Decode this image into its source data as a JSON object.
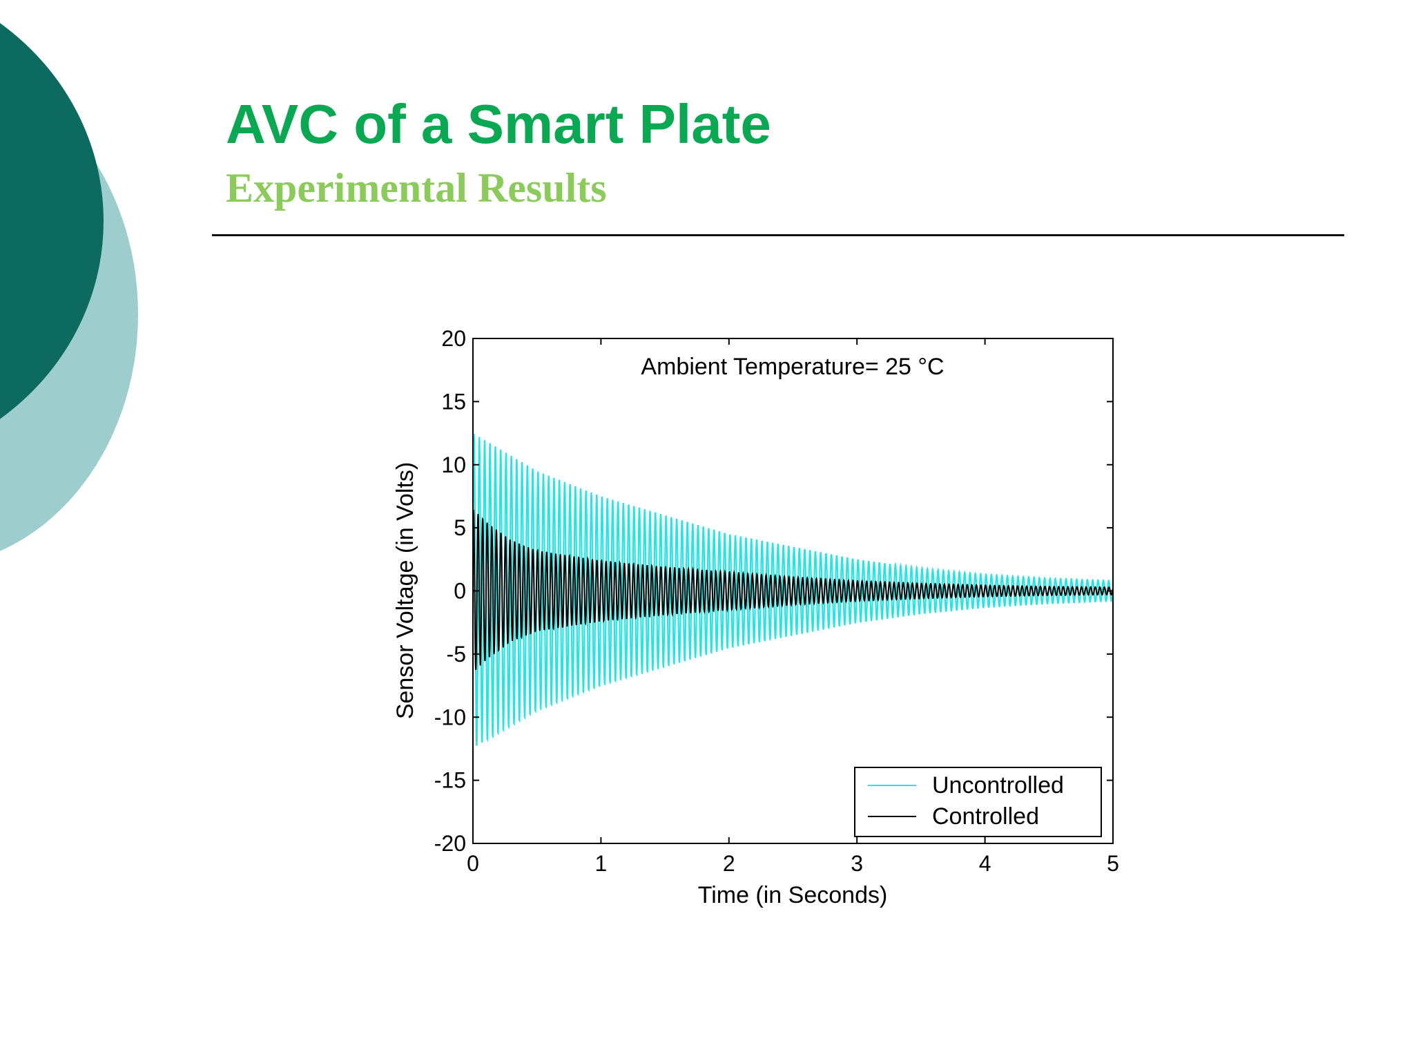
{
  "slide": {
    "title": "AVC of a Smart Plate",
    "subtitle": "Experimental Results",
    "colors": {
      "title": "#0aa853",
      "subtitle": "#8ccb5b",
      "circle_dark": "#0c6a60",
      "circle_light": "#9dcdcd"
    }
  },
  "chart_data": {
    "type": "line",
    "title": "Ambient Temperature= 25 °C",
    "xlabel": "Time (in Seconds)",
    "ylabel": "Sensor Voltage (in Volts)",
    "xlim": [
      0,
      5
    ],
    "ylim": [
      -20,
      20
    ],
    "xticks": [
      "0",
      "1",
      "2",
      "3",
      "4",
      "5"
    ],
    "yticks": [
      "20",
      "15",
      "10",
      "5",
      "0",
      "-5",
      "-10",
      "-15",
      "-20"
    ],
    "grid": false,
    "legend_position": "bottom-right",
    "series": [
      {
        "name": "Uncontrolled",
        "color": "#22e5e5",
        "oscillation_frequency_hz": 24,
        "envelope": {
          "t": [
            0,
            0.5,
            1,
            1.5,
            2,
            2.5,
            3,
            3.5,
            4,
            4.5,
            5
          ],
          "amplitude": [
            12.5,
            9.5,
            7.5,
            6,
            4.5,
            3.5,
            2.5,
            1.8,
            1.3,
            1,
            0.8
          ]
        }
      },
      {
        "name": "Controlled",
        "color": "#000000",
        "oscillation_frequency_hz": 28,
        "envelope": {
          "t": [
            0,
            0.1,
            0.3,
            0.5,
            1,
            1.5,
            2,
            2.5,
            3,
            3.5,
            4,
            4.5,
            5
          ],
          "amplitude": [
            6.5,
            5.5,
            4,
            3.2,
            2.4,
            1.9,
            1.5,
            1.1,
            0.8,
            0.6,
            0.45,
            0.35,
            0.3
          ]
        }
      }
    ]
  }
}
